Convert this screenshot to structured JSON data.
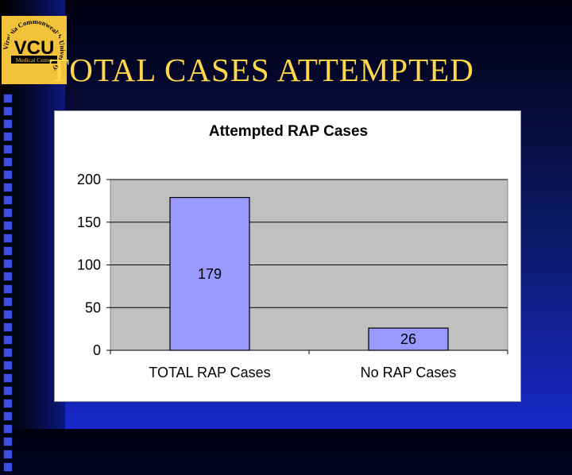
{
  "slide": {
    "title": "TOTAL CASES ATTEMPTED",
    "title_color": "#ffd84a",
    "background_color": "#0c1a66"
  },
  "logo": {
    "main_text": "VCU",
    "sub_text": "Medical Center",
    "ring_text": "Virginia Commonwealth University",
    "ring_color": "#f2c23b",
    "main_color": "#000000"
  },
  "chart_data": {
    "type": "bar",
    "title": "Attempted RAP Cases",
    "categories": [
      "TOTAL RAP Cases",
      "No RAP Cases"
    ],
    "values": [
      179,
      26
    ],
    "data_labels": [
      "179",
      "26"
    ],
    "xlabel": "",
    "ylabel": "",
    "ylim": [
      0,
      200
    ],
    "yticks": [
      0,
      50,
      100,
      150,
      200
    ],
    "grid": true,
    "legend": "none",
    "bar_color": "#9999ff",
    "plot_background": "#c0c0c0"
  }
}
